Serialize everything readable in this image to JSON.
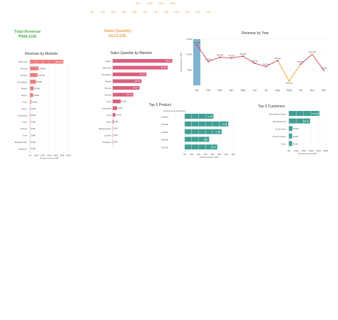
{
  "filters": {
    "years": [
      "2017",
      "2018",
      "2019",
      "2020"
    ],
    "months": [
      "Jan",
      "Feb",
      "Mar",
      "Apr",
      "May",
      "Jun",
      "Jul",
      "Aug",
      "Sept",
      "Oct",
      "Nov",
      "Dec"
    ]
  },
  "kpis": {
    "total_revenue_label": "Total Revenue",
    "total_revenue_value": "₹986.61M",
    "sales_quantity_label": "Sales Quantity",
    "sales_quantity_value": "24,31,539"
  },
  "colors": {
    "filter_text": "#e8a54a",
    "revenue_kpi": "#4cae4c",
    "quantity_kpi": "#e8a54a",
    "markets_bar": "#ee7b7b",
    "quantity_bar": "#d9607e",
    "product_bar": "#3f9f94",
    "customer_bar": "#3f9f94",
    "line_main": "#d63f5c",
    "line_highlight": "#f0a030",
    "line_fill": "#6aa6c7"
  },
  "chart_data": [
    {
      "id": "revenue_by_markets",
      "type": "bar",
      "title": "Revenue by Markets",
      "xlabel": "Actual Amount in INR",
      "ylabel": "",
      "categories": [
        "Delhi NCR",
        "Chennai",
        "Mumbai",
        "Ahmedabad",
        "Bhopal",
        "Nagpur",
        "Kochi",
        "Kanpur",
        "Hyderabad",
        "Patna",
        "Lucknow",
        "Surat",
        "Bhubaneshwar",
        "Bangalore"
      ],
      "values": [
        520.3,
        134.0,
        121.3,
        93.0,
        58.3,
        50.0,
        19.0,
        9.3,
        9.5,
        7.3,
        6.6,
        3.8,
        0.4,
        0.3
      ],
      "labels": [
        "520.3M",
        "134.0M",
        "121.3M",
        "93.0M",
        "58.3M",
        "50.0M",
        "19.0M",
        "9.3M",
        "9.5M",
        "7.3M",
        "6.6M",
        "3.8M",
        "0.4M",
        "0.3M"
      ],
      "xticks": [
        "0M",
        "100M",
        "200M",
        "300M",
        "400M",
        "500M",
        "600M"
      ],
      "xlim": [
        0,
        600
      ]
    },
    {
      "id": "sales_quantity_by_markets",
      "type": "bar",
      "title": "Sales Quantity by Markets",
      "categories": [
        "Nagpur",
        "Delhi NCR",
        "Ahmedabad",
        "Bhopal",
        "Mumbai",
        "Chennai",
        "Kochi",
        "Hyderabad",
        "Surat",
        "Patna",
        "Bhubaneshwar",
        "Lucknow",
        "Bengaluru"
      ],
      "values": [
        4.56,
        4.21,
        2.58,
        2.21,
        2.05,
        1.57,
        0.62,
        0.33,
        0.21,
        0.08,
        0.03,
        0.02,
        0.01
      ],
      "labels": [
        "456.3K",
        "421.5K",
        "257.6K",
        "220.7K",
        "205.4K",
        "157.1K",
        "62.0K",
        "33.3K",
        "20.7K",
        "7.8K",
        "3.4K",
        "1.9K",
        "0.5K"
      ],
      "xlim": [
        0,
        4.8
      ]
    },
    {
      "id": "revenue_by_year",
      "type": "line",
      "title": "Revenue by Year",
      "ylabel": "Actual Amount in INR",
      "categories": [
        "Jan",
        "Feb",
        "Mar",
        "Apr",
        "May",
        "Jun",
        "Jul",
        "Aug",
        "Sept",
        "Oct",
        "Nov",
        "Dec"
      ],
      "values": [
        112.8,
        90.8,
        96.4,
        95.5,
        97.8,
        88.7,
        84.4,
        92.2,
        65.7,
        87.6,
        100.4,
        79.6
      ],
      "labels": [
        "₹112.8M",
        "₹90.8M",
        "₹96.4M",
        "₹95.5M",
        "₹97.8M",
        "₹88.7M",
        "₹84.4M",
        "₹92.2M",
        "₹65.7M",
        "₹87.6M",
        "₹100.4M",
        "₹79.6M"
      ],
      "yticks": [
        "₹80M",
        "₹100M",
        "₹120M"
      ],
      "ylim": [
        60,
        120
      ]
    },
    {
      "id": "top5_product",
      "type": "bar",
      "title": "Top 5 Product",
      "column_header": "Product Code (Products)",
      "xlabel": "Actual Amount in INR",
      "categories": [
        "Prod018",
        "Prod040",
        "Prod021",
        "Prod049",
        "Prod239"
      ],
      "values": [
        41.6,
        63.0,
        53.3,
        35.3,
        47.1
      ],
      "labels": [
        "41.6M",
        "63.0M",
        "53.3M",
        "35.3M",
        "47.1M"
      ],
      "xticks": [
        "0M",
        "10M",
        "20M",
        "30M",
        "40M",
        "50M",
        "60M",
        "70M"
      ],
      "xlim": [
        0,
        70
      ]
    },
    {
      "id": "top5_customers",
      "type": "bar",
      "title": "Top 5 Customers",
      "xlabel": "Actual Amount in INR",
      "categories": [
        "Electricalsara Stores",
        "Electricalslytical",
        "Excel Stores",
        "Premium Stores",
        "Nixon"
      ],
      "values": [
        413.3,
        286.0,
        49.6,
        44.8,
        45.3
      ],
      "labels": [
        "413.3M",
        "286.0M",
        "49.6M",
        "44.8M",
        "45.3M"
      ],
      "xticks": [
        "0M",
        "100M",
        "200M",
        "300M",
        "400M",
        "500M"
      ],
      "xlim": [
        0,
        500
      ]
    }
  ]
}
